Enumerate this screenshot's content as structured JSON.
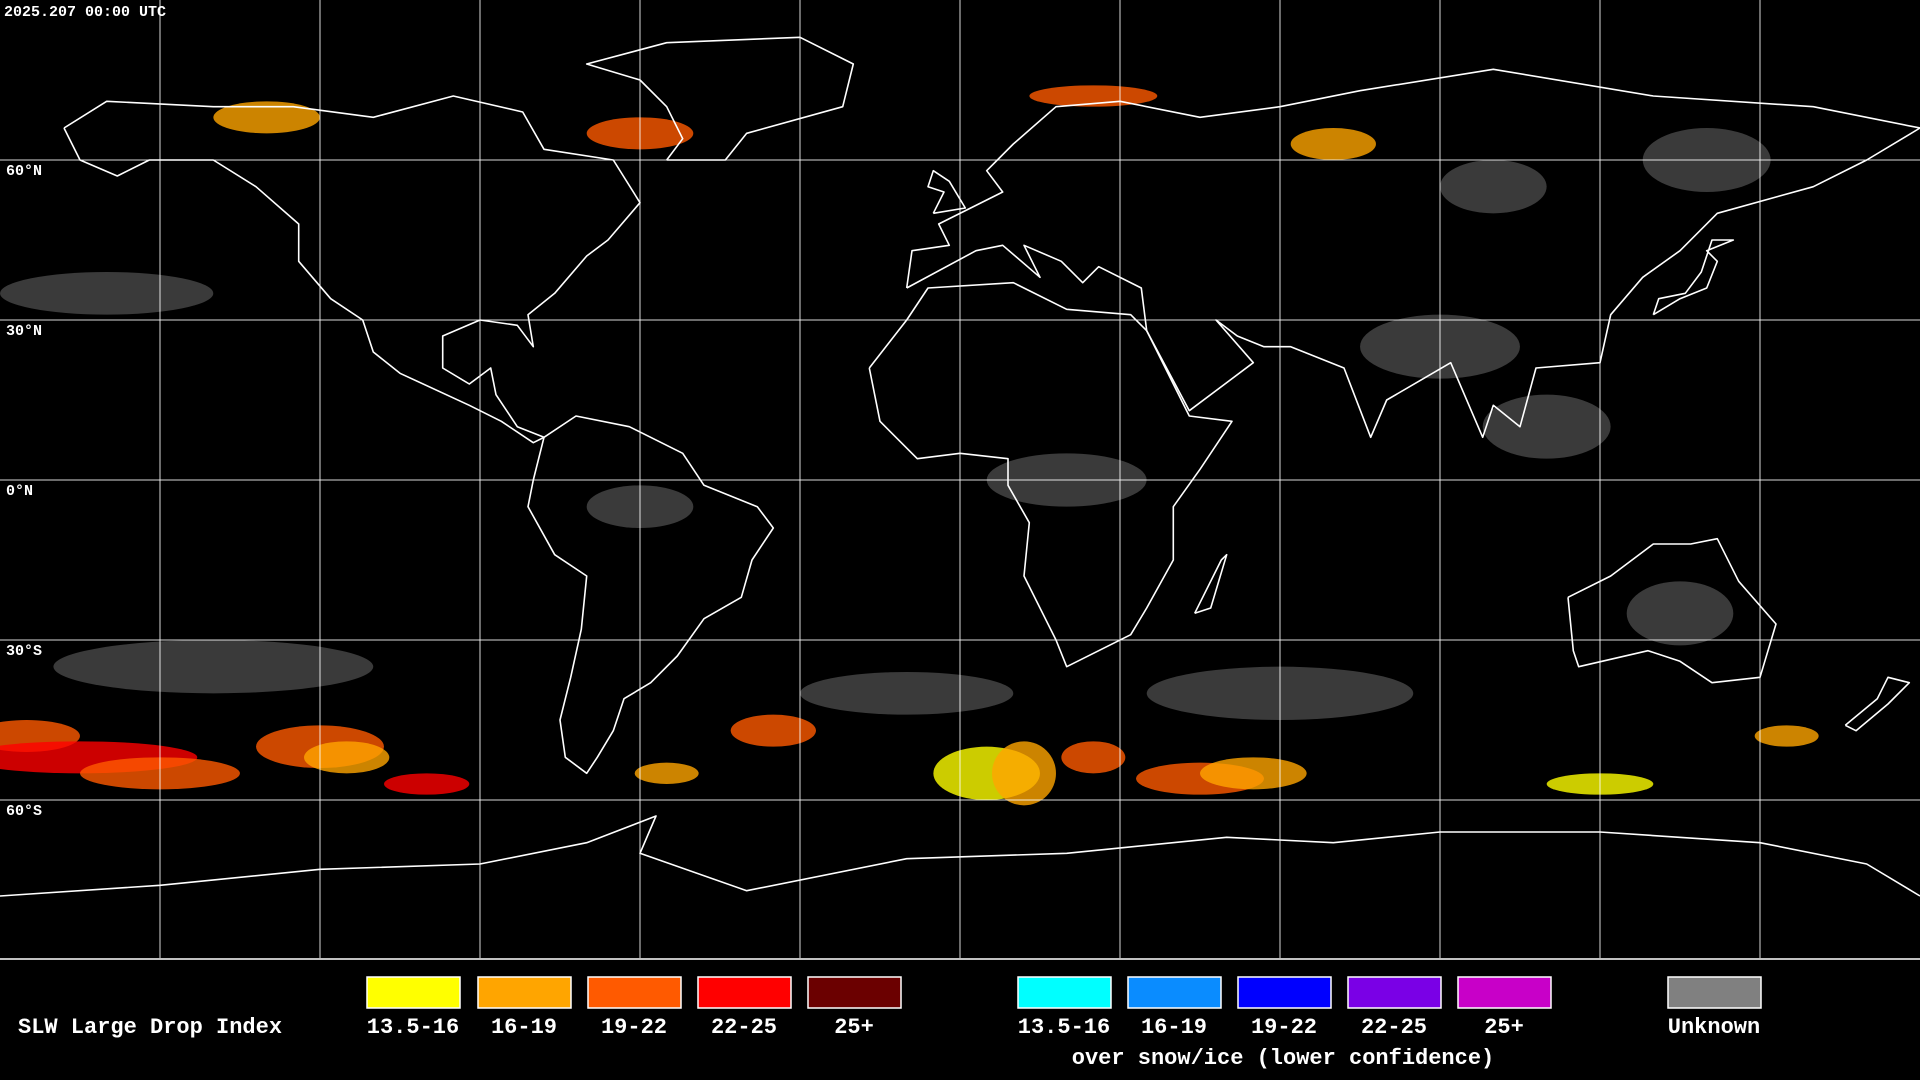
{
  "timestamp": "2025.207 00:00 UTC",
  "lat_labels": [
    "60°N",
    "30°N",
    "0°N",
    "30°S",
    "60°S"
  ],
  "legend": {
    "title": "SLW Large Drop Index",
    "items": [
      {
        "label": "13.5-16",
        "color": "#ffff00"
      },
      {
        "label": "16-19",
        "color": "#ffa500"
      },
      {
        "label": "19-22",
        "color": "#ff5a00"
      },
      {
        "label": "22-25",
        "color": "#ff0000"
      },
      {
        "label": "25+",
        "color": "#6b0000"
      }
    ],
    "snow_items": [
      {
        "label": "13.5-16",
        "color": "#00ffff"
      },
      {
        "label": "16-19",
        "color": "#0a8cff"
      },
      {
        "label": "19-22",
        "color": "#0000ff"
      },
      {
        "label": "22-25",
        "color": "#7a00e6"
      },
      {
        "label": "25+",
        "color": "#c800c8"
      }
    ],
    "snow_caption": "over snow/ice (lower confidence)",
    "unknown": {
      "label": "Unknown",
      "color": "#808080"
    }
  }
}
